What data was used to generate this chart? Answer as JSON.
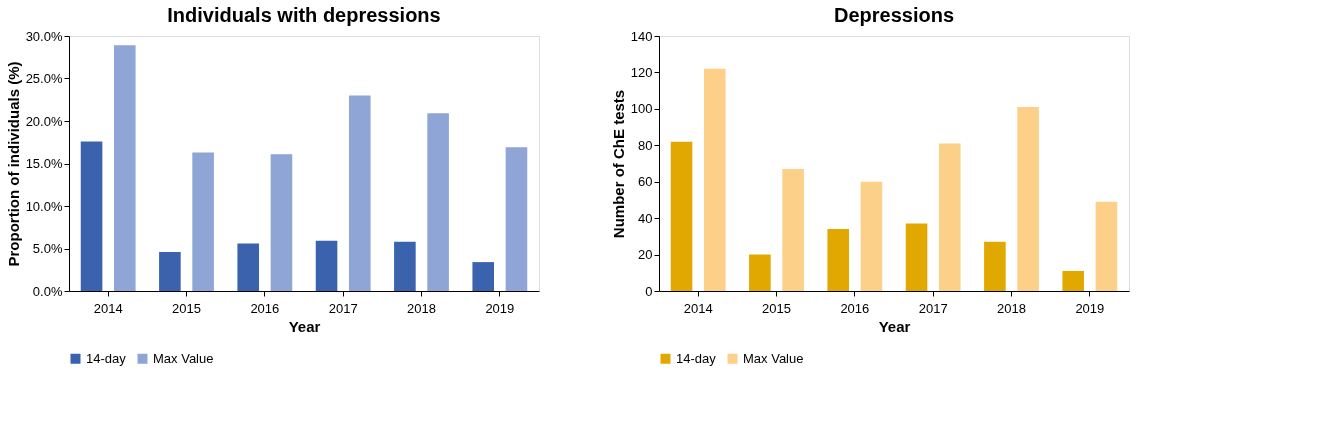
{
  "chart_data": [
    {
      "type": "bar",
      "title": "Individuals with depressions",
      "xlabel": "Year",
      "ylabel": "Proportion of individuals  (%)",
      "categories": [
        "2014",
        "2015",
        "2016",
        "2017",
        "2018",
        "2019"
      ],
      "series": [
        {
          "name": "14-day",
          "color": "#3a62ad",
          "values": [
            17.6,
            4.6,
            5.6,
            5.9,
            5.8,
            3.4
          ]
        },
        {
          "name": "Max Value",
          "color": "#8fa5d6",
          "values": [
            28.9,
            16.3,
            16.1,
            23.0,
            20.9,
            16.9
          ]
        }
      ],
      "ylim": [
        0,
        30
      ],
      "yticks": [
        {
          "value": 0,
          "label": "0.0%"
        },
        {
          "value": 5,
          "label": "5.0%"
        },
        {
          "value": 10,
          "label": "10.0%"
        },
        {
          "value": 15,
          "label": "15.0%"
        },
        {
          "value": 20,
          "label": "20.0%"
        },
        {
          "value": 25,
          "label": "25.0%"
        },
        {
          "value": 30,
          "label": "30.0%"
        }
      ],
      "grid": false,
      "legend": "bottom"
    },
    {
      "type": "bar",
      "title": "Depressions",
      "xlabel": "Year",
      "ylabel": "Number of ChE tests",
      "categories": [
        "2014",
        "2015",
        "2016",
        "2017",
        "2018",
        "2019"
      ],
      "series": [
        {
          "name": "14-day",
          "color": "#e0a800",
          "values": [
            82,
            20,
            34,
            37,
            27,
            11
          ]
        },
        {
          "name": "Max Value",
          "color": "#fdd08a",
          "values": [
            122,
            67,
            60,
            81,
            101,
            49
          ]
        }
      ],
      "ylim": [
        0,
        140
      ],
      "yticks": [
        0,
        20,
        40,
        60,
        80,
        100,
        120,
        140
      ],
      "grid": false,
      "legend": "bottom"
    }
  ]
}
